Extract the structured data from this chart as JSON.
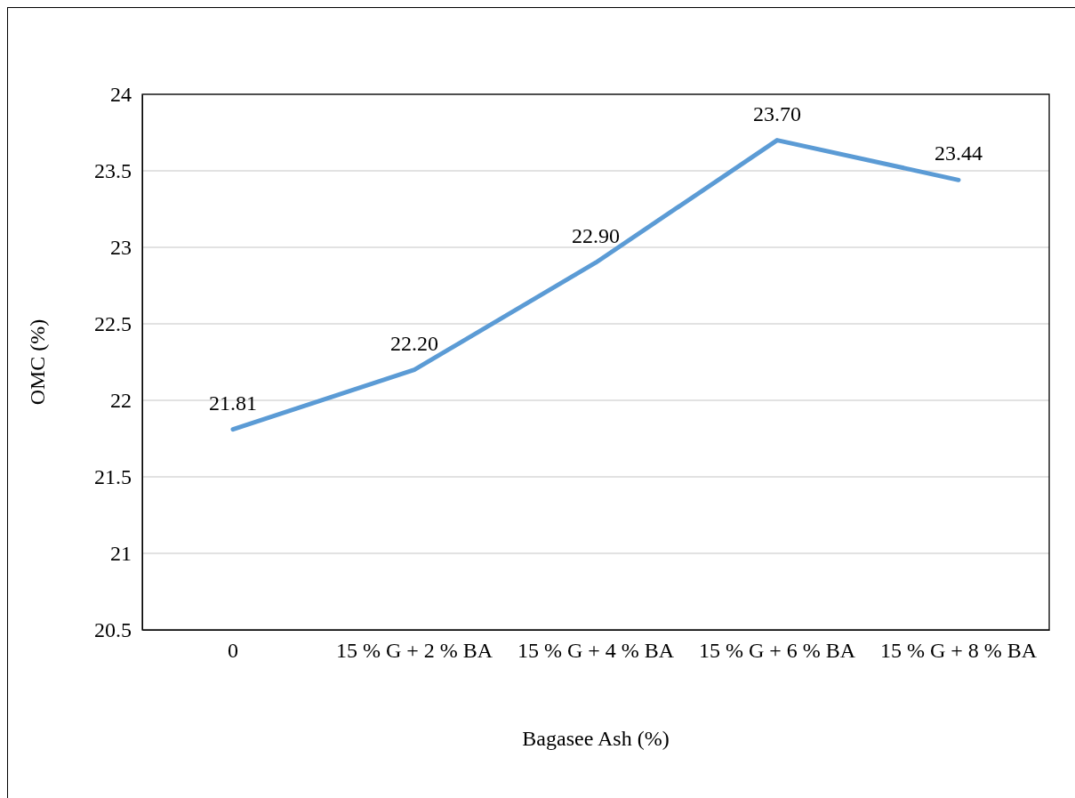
{
  "chart_data": {
    "type": "line",
    "xlabel": "Bagasee Ash (%)",
    "ylabel": "OMC (%)",
    "categories": [
      "0",
      "15 % G + 2 % BA",
      "15 % G + 4 % BA",
      "15 % G + 6 % BA",
      "15 % G + 8 % BA"
    ],
    "series": [
      {
        "color": "#5b9bd5",
        "values": [
          21.81,
          22.2,
          22.9,
          23.7,
          23.44
        ],
        "value_labels": [
          "21.81",
          "22.20",
          "22.90",
          "23.70",
          "23.44"
        ]
      }
    ],
    "ylim": [
      20.5,
      24
    ],
    "yticks": [
      20.5,
      21,
      21.5,
      22,
      22.5,
      23,
      23.5,
      24
    ],
    "grid": "y",
    "marker": "none",
    "line_style": "solid"
  }
}
